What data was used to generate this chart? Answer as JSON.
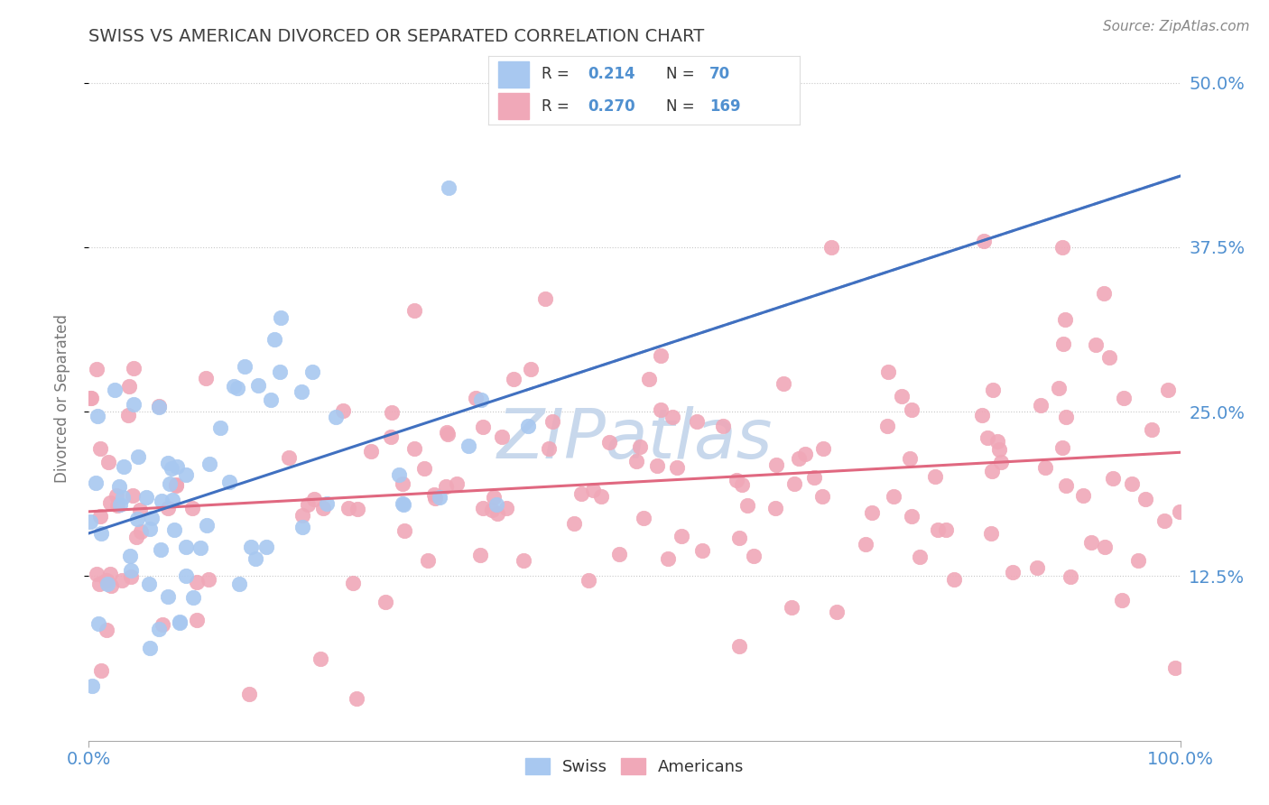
{
  "title": "SWISS VS AMERICAN DIVORCED OR SEPARATED CORRELATION CHART",
  "source": "Source: ZipAtlas.com",
  "ylabel": "Divorced or Separated",
  "x_min": 0.0,
  "x_max": 1.0,
  "y_min": 0.0,
  "y_max": 0.52,
  "swiss_R": 0.214,
  "swiss_N": 70,
  "american_R": 0.27,
  "american_N": 169,
  "swiss_color": "#a8c8f0",
  "american_color": "#f0a8b8",
  "swiss_line_color": "#4070c0",
  "american_line_color": "#e06880",
  "title_color": "#404040",
  "axis_label_color": "#5090d0",
  "background_color": "#ffffff",
  "watermark_color": "#c8d8ec",
  "grid_color": "#c8c8c8",
  "y_tick_vals": [
    0.125,
    0.25,
    0.375,
    0.5
  ],
  "y_tick_labels": [
    "12.5%",
    "25.0%",
    "37.5%",
    "50.0%"
  ],
  "legend_swiss_label": "R =  0.214   N =  70",
  "legend_american_label": "R =  0.270   N =  169"
}
